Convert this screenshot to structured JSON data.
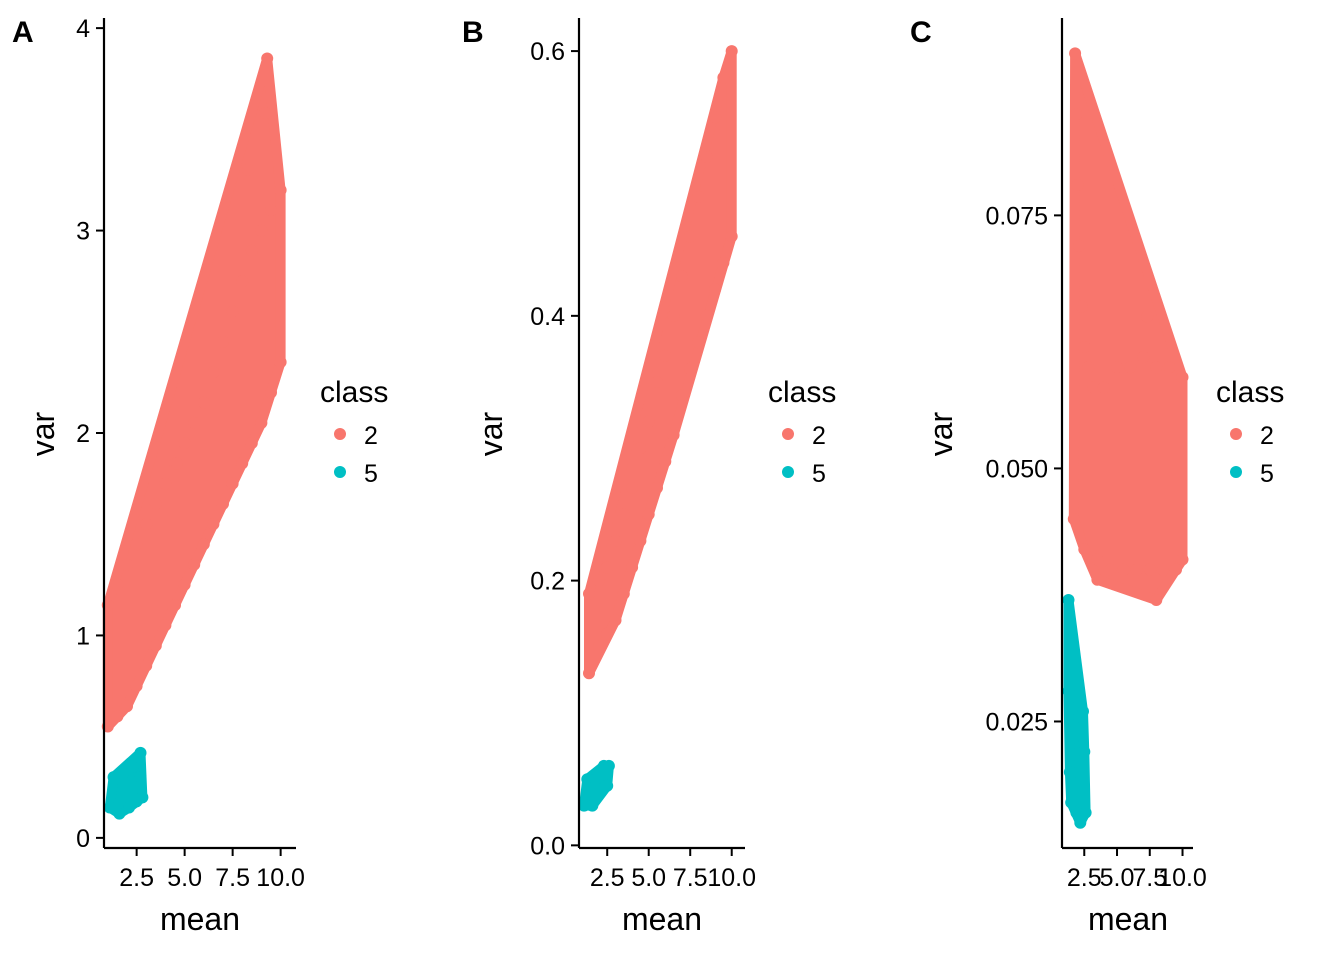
{
  "figure": {
    "panels": [
      {
        "tag": "A",
        "xlabel": "mean",
        "ylabel": "var",
        "legend_title": "class"
      },
      {
        "tag": "B",
        "xlabel": "mean",
        "ylabel": "var",
        "legend_title": "class"
      },
      {
        "tag": "C",
        "xlabel": "mean",
        "ylabel": "var",
        "legend_title": "class"
      }
    ],
    "legend_labels": [
      "2",
      "5"
    ],
    "colors": {
      "class_2": "#F8766D",
      "class_5": "#00BFC4",
      "axis": "#000000",
      "background": "#FFFFFF"
    }
  },
  "chart_data": [
    {
      "type": "scatter",
      "panel": "A",
      "xlabel": "mean",
      "ylabel": "var",
      "xlim": [
        0.8,
        10.8
      ],
      "ylim": [
        -0.05,
        4.05
      ],
      "x_ticks": [
        2.5,
        5.0,
        7.5,
        10.0
      ],
      "x_tick_labels": [
        "2.5",
        "5.0",
        "7.5",
        "10.0"
      ],
      "y_ticks": [
        0,
        1,
        2,
        3,
        4
      ],
      "y_tick_labels": [
        "0",
        "1",
        "2",
        "3",
        "4"
      ],
      "grid": false,
      "legend": {
        "title": "class",
        "position": "right"
      },
      "series": [
        {
          "name": "2",
          "color": "#F8766D",
          "description": "dense band rising from low to high mean",
          "points": [
            [
              1.0,
              0.55
            ],
            [
              1.0,
              1.15
            ],
            [
              1.5,
              0.6
            ],
            [
              1.5,
              1.25
            ],
            [
              2.0,
              0.65
            ],
            [
              2.0,
              1.35
            ],
            [
              2.5,
              0.75
            ],
            [
              2.5,
              1.45
            ],
            [
              3.0,
              0.85
            ],
            [
              3.0,
              1.55
            ],
            [
              3.5,
              0.95
            ],
            [
              3.5,
              1.65
            ],
            [
              4.0,
              1.05
            ],
            [
              4.0,
              1.75
            ],
            [
              4.5,
              1.15
            ],
            [
              4.5,
              1.85
            ],
            [
              5.0,
              1.25
            ],
            [
              5.0,
              1.95
            ],
            [
              5.5,
              1.35
            ],
            [
              5.5,
              2.05
            ],
            [
              6.0,
              1.45
            ],
            [
              6.0,
              2.15
            ],
            [
              6.5,
              1.55
            ],
            [
              6.5,
              2.3
            ],
            [
              7.0,
              1.65
            ],
            [
              7.0,
              2.45
            ],
            [
              7.5,
              1.75
            ],
            [
              7.5,
              2.6
            ],
            [
              8.0,
              1.85
            ],
            [
              8.0,
              2.75
            ],
            [
              8.5,
              1.95
            ],
            [
              8.5,
              2.9
            ],
            [
              9.0,
              2.05
            ],
            [
              9.0,
              3.0
            ],
            [
              9.5,
              2.2
            ],
            [
              9.5,
              3.1
            ],
            [
              10.0,
              2.35
            ],
            [
              10.0,
              3.2
            ],
            [
              4.6,
              1.85
            ],
            [
              9.2,
              3.58
            ],
            [
              9.3,
              3.85
            ],
            [
              8.3,
              3.3
            ]
          ]
        },
        {
          "name": "5",
          "color": "#00BFC4",
          "description": "small cluster at low mean",
          "points": [
            [
              1.1,
              0.15
            ],
            [
              1.3,
              0.3
            ],
            [
              1.6,
              0.12
            ],
            [
              1.8,
              0.32
            ],
            [
              2.1,
              0.15
            ],
            [
              2.3,
              0.35
            ],
            [
              2.5,
              0.18
            ],
            [
              2.7,
              0.3
            ],
            [
              2.8,
              0.2
            ],
            [
              2.7,
              0.42
            ]
          ]
        }
      ]
    },
    {
      "type": "scatter",
      "panel": "B",
      "xlabel": "mean",
      "ylabel": "var",
      "xlim": [
        0.8,
        10.8
      ],
      "ylim": [
        -0.002,
        0.625
      ],
      "x_ticks": [
        2.5,
        5.0,
        7.5,
        10.0
      ],
      "x_tick_labels": [
        "2.5",
        "5.0",
        "7.5",
        "10.0"
      ],
      "y_ticks": [
        0.0,
        0.2,
        0.4,
        0.6
      ],
      "y_tick_labels": [
        "0.0",
        "0.2",
        "0.4",
        "0.6"
      ],
      "grid": false,
      "legend": {
        "title": "class",
        "position": "right"
      },
      "series": [
        {
          "name": "2",
          "color": "#F8766D",
          "description": "dense band rising steeply with mean",
          "points": [
            [
              1.4,
              0.13
            ],
            [
              1.4,
              0.19
            ],
            [
              2.0,
              0.15
            ],
            [
              2.0,
              0.2
            ],
            [
              2.5,
              0.16
            ],
            [
              2.5,
              0.21
            ],
            [
              3.0,
              0.17
            ],
            [
              3.0,
              0.23
            ],
            [
              3.5,
              0.19
            ],
            [
              3.5,
              0.25
            ],
            [
              4.0,
              0.21
            ],
            [
              4.0,
              0.27
            ],
            [
              4.5,
              0.23
            ],
            [
              4.5,
              0.3
            ],
            [
              5.0,
              0.25
            ],
            [
              5.0,
              0.32
            ],
            [
              5.5,
              0.27
            ],
            [
              5.5,
              0.35
            ],
            [
              6.0,
              0.29
            ],
            [
              6.0,
              0.37
            ],
            [
              6.5,
              0.31
            ],
            [
              6.5,
              0.4
            ],
            [
              7.0,
              0.34
            ],
            [
              7.0,
              0.43
            ],
            [
              7.5,
              0.36
            ],
            [
              7.5,
              0.46
            ],
            [
              8.0,
              0.38
            ],
            [
              8.0,
              0.49
            ],
            [
              8.5,
              0.4
            ],
            [
              8.5,
              0.52
            ],
            [
              9.0,
              0.42
            ],
            [
              9.0,
              0.55
            ],
            [
              9.5,
              0.44
            ],
            [
              9.5,
              0.58
            ],
            [
              10.0,
              0.46
            ],
            [
              10.0,
              0.6
            ]
          ]
        },
        {
          "name": "5",
          "color": "#00BFC4",
          "description": "small cluster at low mean",
          "points": [
            [
              1.1,
              0.03
            ],
            [
              1.3,
              0.05
            ],
            [
              1.6,
              0.03
            ],
            [
              1.8,
              0.05
            ],
            [
              2.1,
              0.04
            ],
            [
              2.3,
              0.06
            ],
            [
              2.5,
              0.045
            ],
            [
              2.6,
              0.06
            ]
          ]
        }
      ]
    },
    {
      "type": "scatter",
      "panel": "C",
      "xlabel": "mean",
      "ylabel": "var",
      "xlim": [
        0.8,
        10.8
      ],
      "ylim": [
        0.0125,
        0.0945
      ],
      "x_ticks": [
        2.5,
        5.0,
        7.5,
        10.0
      ],
      "x_tick_labels": [
        "2.5",
        "5.0",
        "7.5",
        "10.0"
      ],
      "y_ticks": [
        0.025,
        0.05,
        0.075
      ],
      "y_tick_labels": [
        "0.025",
        "0.050",
        "0.075"
      ],
      "grid": false,
      "legend": {
        "title": "class",
        "position": "right"
      },
      "series": [
        {
          "name": "2",
          "color": "#F8766D",
          "description": "tall spike near low mean decaying into a flat block",
          "points": [
            [
              1.8,
              0.091
            ],
            [
              1.9,
              0.085
            ],
            [
              2.0,
              0.078
            ],
            [
              2.1,
              0.072
            ],
            [
              2.3,
              0.066
            ],
            [
              2.5,
              0.062
            ],
            [
              2.8,
              0.06
            ],
            [
              3.2,
              0.058
            ],
            [
              4.0,
              0.058
            ],
            [
              5.0,
              0.06
            ],
            [
              6.0,
              0.06
            ],
            [
              7.0,
              0.061
            ],
            [
              8.0,
              0.06
            ],
            [
              9.0,
              0.06
            ],
            [
              10.0,
              0.059
            ],
            [
              1.7,
              0.045
            ],
            [
              2.5,
              0.042
            ],
            [
              3.5,
              0.041
            ],
            [
              4.5,
              0.04
            ],
            [
              5.5,
              0.04
            ],
            [
              6.5,
              0.04
            ],
            [
              7.5,
              0.04
            ],
            [
              8.5,
              0.04
            ],
            [
              9.5,
              0.04
            ],
            [
              10.0,
              0.041
            ],
            [
              3.5,
              0.039
            ],
            [
              8.0,
              0.037
            ],
            [
              7.3,
              0.065
            ]
          ]
        },
        {
          "name": "5",
          "color": "#00BFC4",
          "description": "narrow vertical cluster at low mean",
          "points": [
            [
              1.3,
              0.037
            ],
            [
              1.3,
              0.028
            ],
            [
              1.4,
              0.02
            ],
            [
              1.5,
              0.017
            ],
            [
              1.7,
              0.024
            ],
            [
              1.9,
              0.016
            ],
            [
              2.2,
              0.015
            ],
            [
              2.4,
              0.026
            ],
            [
              2.5,
              0.022
            ],
            [
              2.6,
              0.016
            ]
          ]
        }
      ]
    }
  ]
}
